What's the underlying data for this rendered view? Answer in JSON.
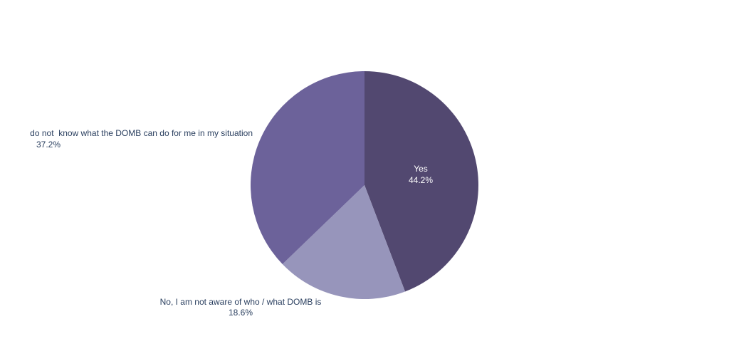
{
  "chart_data": {
    "type": "pie",
    "categories": [
      "Yes",
      "No, I am not aware of who / what DOMB is",
      "do not  know what the DOMB can do for me in my situation"
    ],
    "values": [
      44.2,
      18.6,
      37.2
    ],
    "value_labels": [
      "44.2%",
      "18.6%",
      "37.2%"
    ],
    "colors": [
      "#524870",
      "#9795bb",
      "#6c629a"
    ]
  }
}
